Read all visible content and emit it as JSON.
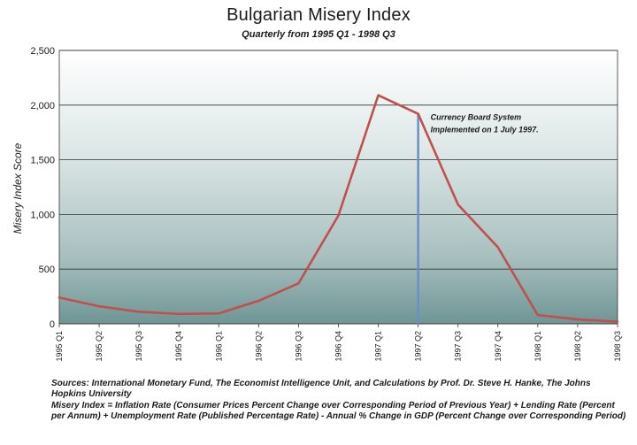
{
  "chart_data": {
    "type": "line",
    "title": "Bulgarian Misery Index",
    "subtitle": "Quarterly from 1995 Q1 - 1998 Q3",
    "xlabel": "",
    "ylabel": "Misery Index Score",
    "ylim": [
      0,
      2500
    ],
    "yticks": [
      0,
      500,
      1000,
      1500,
      2000,
      2500
    ],
    "ytick_labels": [
      "0",
      "500",
      "1,000",
      "1,500",
      "2,000",
      "2,500"
    ],
    "grid": true,
    "categories": [
      "1995 Q1",
      "1995 Q2",
      "1995 Q3",
      "1995 Q4",
      "1996 Q1",
      "1996 Q2",
      "1996 Q3",
      "1996 Q4",
      "1997 Q1",
      "1997 Q2",
      "1997 Q3",
      "1997 Q4",
      "1998 Q1",
      "1998 Q2",
      "1998 Q3"
    ],
    "series": [
      {
        "name": "Misery Index",
        "color": "#c0504d",
        "values": [
          240,
          160,
          110,
          90,
          95,
          210,
          370,
          990,
          2090,
          1920,
          1090,
          700,
          80,
          40,
          20
        ]
      }
    ],
    "marker": {
      "category": "1997 Q2",
      "color": "#6b8fc8",
      "label_line1": "Currency Board System",
      "label_line2": "Implemented on 1 July 1997."
    }
  },
  "notes": {
    "sources": "Sources: International Monetary Fund, The Economist Intelligence Unit, and Calculations by Prof. Dr. Steve H. Hanke, The Johns Hopkins University",
    "definition": "Misery Index = Inflation Rate (Consumer Prices Percent Change over Corresponding Period of Previous Year) + Lending Rate (Percent per Annum) + Unemployment Rate (Published Percentage Rate) - Annual % Change in GDP (Percent Change over Corresponding Period)"
  }
}
